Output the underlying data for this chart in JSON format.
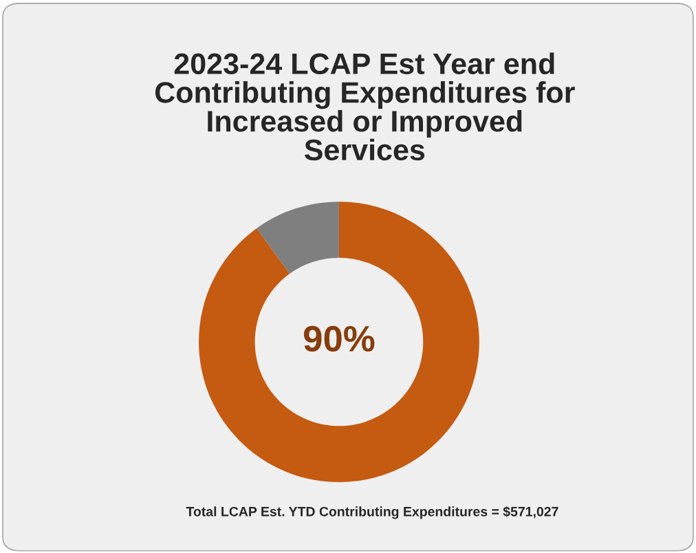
{
  "chart_data": {
    "type": "donut",
    "title": "2023-24 LCAP Est Year end\nContributing Expenditures for\nIncreased or Improved\nServices",
    "categories": [
      null,
      null
    ],
    "values": [
      90,
      10
    ],
    "colors": [
      "#c55a11",
      "#7f7f7f"
    ],
    "value_labels": [
      "90%",
      null
    ],
    "legend": false,
    "annotations": [
      "Total LCAP Est. YTD Contributing Expenditures = $571,027"
    ]
  }
}
